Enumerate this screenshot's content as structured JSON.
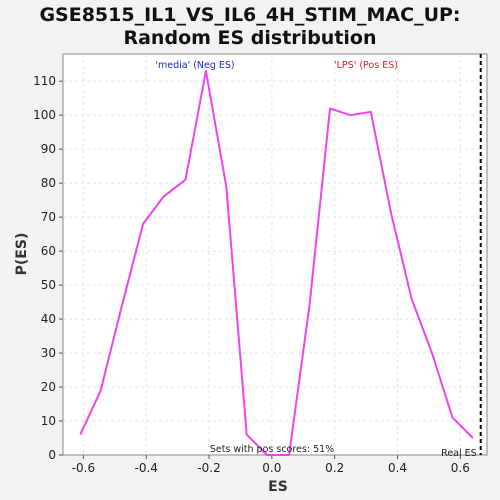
{
  "chart_data": {
    "type": "line",
    "title_lines": [
      "GSE8515_IL1_VS_IL6_4H_STIM_MAC_UP:",
      "Random ES distribution"
    ],
    "xlabel": "ES",
    "ylabel": "P(ES)",
    "xlim": [
      -0.665,
      0.685
    ],
    "ylim": [
      0,
      118
    ],
    "xticks": [
      -0.6,
      -0.4,
      -0.2,
      0.0,
      0.2,
      0.4,
      0.6
    ],
    "xtick_labels": [
      "-0.6",
      "-0.4",
      "-0.2",
      "0.0",
      "0.2",
      "0.4",
      "0.6"
    ],
    "yticks": [
      0,
      10,
      20,
      30,
      40,
      50,
      60,
      70,
      80,
      90,
      100,
      110
    ],
    "ytick_labels": [
      "0",
      "10",
      "20",
      "30",
      "40",
      "50",
      "60",
      "70",
      "80",
      "90",
      "100",
      "110"
    ],
    "grid": true,
    "series": [
      {
        "color": "#ee44ee",
        "x": [
          -0.61,
          -0.545,
          -0.48,
          -0.41,
          -0.345,
          -0.275,
          -0.21,
          -0.145,
          -0.08,
          -0.015,
          0.055,
          0.12,
          0.185,
          0.25,
          0.315,
          0.38,
          0.445,
          0.51,
          0.575,
          0.64
        ],
        "y": [
          6,
          19,
          43,
          68,
          76,
          81,
          113,
          79,
          6,
          0,
          0,
          44,
          102,
          100,
          101,
          71,
          46,
          30,
          11,
          5
        ]
      }
    ],
    "annotations": {
      "neg_label": "'media' (Neg ES)",
      "pos_label": "'LPS' (Pos ES)",
      "pos_scores": "Sets with pos scores: 51%",
      "real_es_label": "Real ES",
      "neg_color": "#2222cc",
      "pos_color": "#dd2222"
    },
    "real_es": 0.665
  }
}
